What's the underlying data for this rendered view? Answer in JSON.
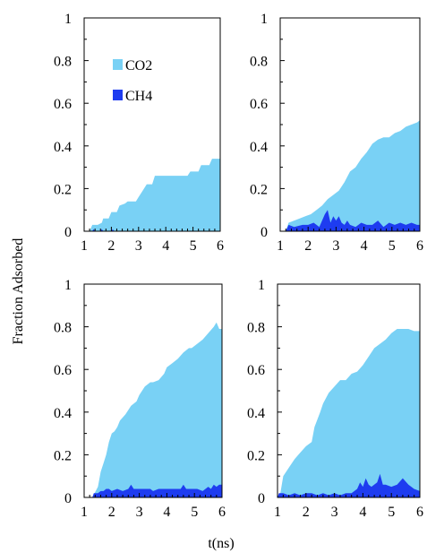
{
  "figure": {
    "ylabel": "Fraction Adsorbed",
    "xlabel": "t(ns)"
  },
  "colors": {
    "co2": "#79D1F5",
    "ch4": "#1E3CF0"
  },
  "chart_data": [
    {
      "type": "area",
      "panel": "top-left",
      "xlim": [
        1,
        6
      ],
      "ylim": [
        0,
        1
      ],
      "xticks": [
        "1",
        "2",
        "3",
        "4",
        "5",
        "6"
      ],
      "yticks": [
        "0",
        "0.2",
        "0.4",
        "0.6",
        "0.8",
        "1"
      ],
      "legend": {
        "placement": "top-left",
        "entries": [
          "CO2",
          "CH4"
        ]
      },
      "series": [
        {
          "name": "CO2",
          "x": [
            1,
            1.2,
            1.3,
            1.5,
            1.65,
            1.7,
            1.9,
            2.0,
            2.2,
            2.3,
            2.5,
            2.6,
            2.9,
            3.0,
            3.1,
            3.2,
            3.3,
            3.5,
            3.6,
            4.0,
            4.2,
            4.8,
            4.9,
            5.2,
            5.3,
            5.6,
            5.7,
            6.0
          ],
          "y": [
            0,
            0,
            0.03,
            0.03,
            0.04,
            0.06,
            0.06,
            0.09,
            0.09,
            0.12,
            0.13,
            0.14,
            0.14,
            0.16,
            0.18,
            0.2,
            0.22,
            0.22,
            0.26,
            0.26,
            0.26,
            0.26,
            0.28,
            0.28,
            0.31,
            0.31,
            0.34,
            0.34
          ]
        },
        {
          "name": "CH4",
          "x": [
            1,
            1.3,
            1.35,
            1.4,
            1.6,
            1.65,
            1.7,
            2.0,
            2.05,
            2.1,
            2.2,
            6.0
          ],
          "y": [
            0,
            0,
            0.01,
            0,
            0,
            0.01,
            0,
            0,
            0.01,
            0,
            0,
            0
          ]
        }
      ]
    },
    {
      "type": "area",
      "panel": "top-right",
      "xlim": [
        1,
        6
      ],
      "ylim": [
        0,
        1
      ],
      "xticks": [
        "1",
        "2",
        "3",
        "4",
        "5",
        "6"
      ],
      "yticks": [
        "0",
        "0.2",
        "0.4",
        "0.6",
        "0.8",
        "1"
      ],
      "series": [
        {
          "name": "CO2",
          "x": [
            1,
            1.2,
            1.3,
            1.5,
            1.7,
            1.9,
            2.1,
            2.3,
            2.5,
            2.7,
            2.9,
            3.1,
            3.3,
            3.5,
            3.7,
            3.9,
            4.1,
            4.3,
            4.5,
            4.7,
            4.9,
            5.1,
            5.3,
            5.5,
            5.7,
            5.9,
            6.0
          ],
          "y": [
            0,
            0,
            0.04,
            0.05,
            0.06,
            0.07,
            0.08,
            0.1,
            0.12,
            0.15,
            0.17,
            0.19,
            0.23,
            0.28,
            0.3,
            0.34,
            0.37,
            0.41,
            0.43,
            0.44,
            0.44,
            0.46,
            0.47,
            0.49,
            0.5,
            0.51,
            0.52
          ]
        },
        {
          "name": "CH4",
          "x": [
            1,
            1.2,
            1.3,
            1.5,
            1.8,
            2.0,
            2.2,
            2.4,
            2.5,
            2.6,
            2.7,
            2.8,
            2.9,
            3.0,
            3.1,
            3.2,
            3.3,
            3.4,
            3.5,
            3.7,
            3.9,
            4.1,
            4.3,
            4.5,
            4.7,
            4.9,
            5.1,
            5.3,
            5.5,
            5.7,
            5.9,
            6.0
          ],
          "y": [
            0,
            0,
            0.03,
            0.02,
            0.03,
            0.03,
            0.04,
            0.02,
            0.05,
            0.08,
            0.1,
            0.04,
            0.07,
            0.05,
            0.07,
            0.04,
            0.03,
            0.05,
            0.03,
            0.02,
            0.04,
            0.03,
            0.03,
            0.05,
            0.02,
            0.04,
            0.03,
            0.04,
            0.03,
            0.04,
            0.03,
            0.03
          ]
        }
      ]
    },
    {
      "type": "area",
      "panel": "bottom-left",
      "xlim": [
        1,
        6
      ],
      "ylim": [
        0,
        1
      ],
      "xticks": [
        "1",
        "2",
        "3",
        "4",
        "5",
        "6"
      ],
      "yticks": [
        "0",
        "0.2",
        "0.4",
        "0.6",
        "0.8",
        "1"
      ],
      "series": [
        {
          "name": "CO2",
          "x": [
            1,
            1.3,
            1.5,
            1.6,
            1.7,
            1.8,
            1.9,
            2.0,
            2.1,
            2.2,
            2.3,
            2.5,
            2.7,
            2.9,
            3.0,
            3.2,
            3.4,
            3.5,
            3.7,
            3.9,
            4.0,
            4.2,
            4.4,
            4.6,
            4.8,
            4.9,
            5.1,
            5.3,
            5.5,
            5.7,
            5.8,
            5.9,
            6.0
          ],
          "y": [
            0,
            0,
            0.05,
            0.12,
            0.16,
            0.2,
            0.26,
            0.3,
            0.31,
            0.33,
            0.36,
            0.39,
            0.43,
            0.45,
            0.48,
            0.52,
            0.54,
            0.54,
            0.55,
            0.58,
            0.61,
            0.63,
            0.65,
            0.68,
            0.7,
            0.7,
            0.72,
            0.74,
            0.77,
            0.8,
            0.82,
            0.79,
            0.79
          ]
        },
        {
          "name": "CH4",
          "x": [
            1,
            1.3,
            1.35,
            1.5,
            1.6,
            1.7,
            1.8,
            1.9,
            2.0,
            2.2,
            2.4,
            2.6,
            2.7,
            2.8,
            3.0,
            3.2,
            3.4,
            3.5,
            3.7,
            3.9,
            4.1,
            4.3,
            4.5,
            4.6,
            4.7,
            4.9,
            5.1,
            5.3,
            5.5,
            5.6,
            5.7,
            5.8,
            5.9,
            6.0
          ],
          "y": [
            0,
            0,
            0.02,
            0.02,
            0.03,
            0.03,
            0.04,
            0.04,
            0.03,
            0.04,
            0.03,
            0.04,
            0.06,
            0.04,
            0.04,
            0.04,
            0.04,
            0.03,
            0.04,
            0.04,
            0.04,
            0.04,
            0.04,
            0.06,
            0.04,
            0.04,
            0.04,
            0.03,
            0.05,
            0.04,
            0.06,
            0.05,
            0.06,
            0.06
          ]
        }
      ]
    },
    {
      "type": "area",
      "panel": "bottom-right",
      "xlim": [
        1,
        6
      ],
      "ylim": [
        0,
        1
      ],
      "xticks": [
        "1",
        "2",
        "3",
        "4",
        "5",
        "6"
      ],
      "yticks": [
        "0",
        "0.2",
        "0.4",
        "0.6",
        "0.8",
        "1"
      ],
      "series": [
        {
          "name": "CO2",
          "x": [
            1,
            1.1,
            1.2,
            1.4,
            1.6,
            1.8,
            2.0,
            2.2,
            2.3,
            2.5,
            2.6,
            2.8,
            3.0,
            3.2,
            3.4,
            3.6,
            3.8,
            4.0,
            4.2,
            4.4,
            4.6,
            4.8,
            5.0,
            5.2,
            5.4,
            5.6,
            5.8,
            6.0
          ],
          "y": [
            0,
            0.02,
            0.1,
            0.14,
            0.18,
            0.21,
            0.24,
            0.26,
            0.33,
            0.4,
            0.44,
            0.49,
            0.52,
            0.55,
            0.55,
            0.58,
            0.59,
            0.62,
            0.66,
            0.7,
            0.72,
            0.74,
            0.77,
            0.79,
            0.79,
            0.79,
            0.78,
            0.78
          ]
        },
        {
          "name": "CH4",
          "x": [
            1,
            1.05,
            1.2,
            1.4,
            1.6,
            1.8,
            2.0,
            2.2,
            2.4,
            2.6,
            2.8,
            3.0,
            3.2,
            3.4,
            3.6,
            3.8,
            3.9,
            4.0,
            4.1,
            4.2,
            4.3,
            4.5,
            4.6,
            4.7,
            4.8,
            5.0,
            5.2,
            5.4,
            5.6,
            5.8,
            6.0
          ],
          "y": [
            0,
            0.02,
            0.02,
            0.01,
            0.02,
            0.01,
            0.02,
            0.02,
            0.01,
            0.02,
            0.01,
            0.02,
            0.01,
            0.02,
            0.02,
            0.04,
            0.07,
            0.05,
            0.09,
            0.06,
            0.05,
            0.07,
            0.11,
            0.06,
            0.06,
            0.05,
            0.06,
            0.09,
            0.06,
            0.04,
            0.03
          ]
        }
      ]
    }
  ]
}
